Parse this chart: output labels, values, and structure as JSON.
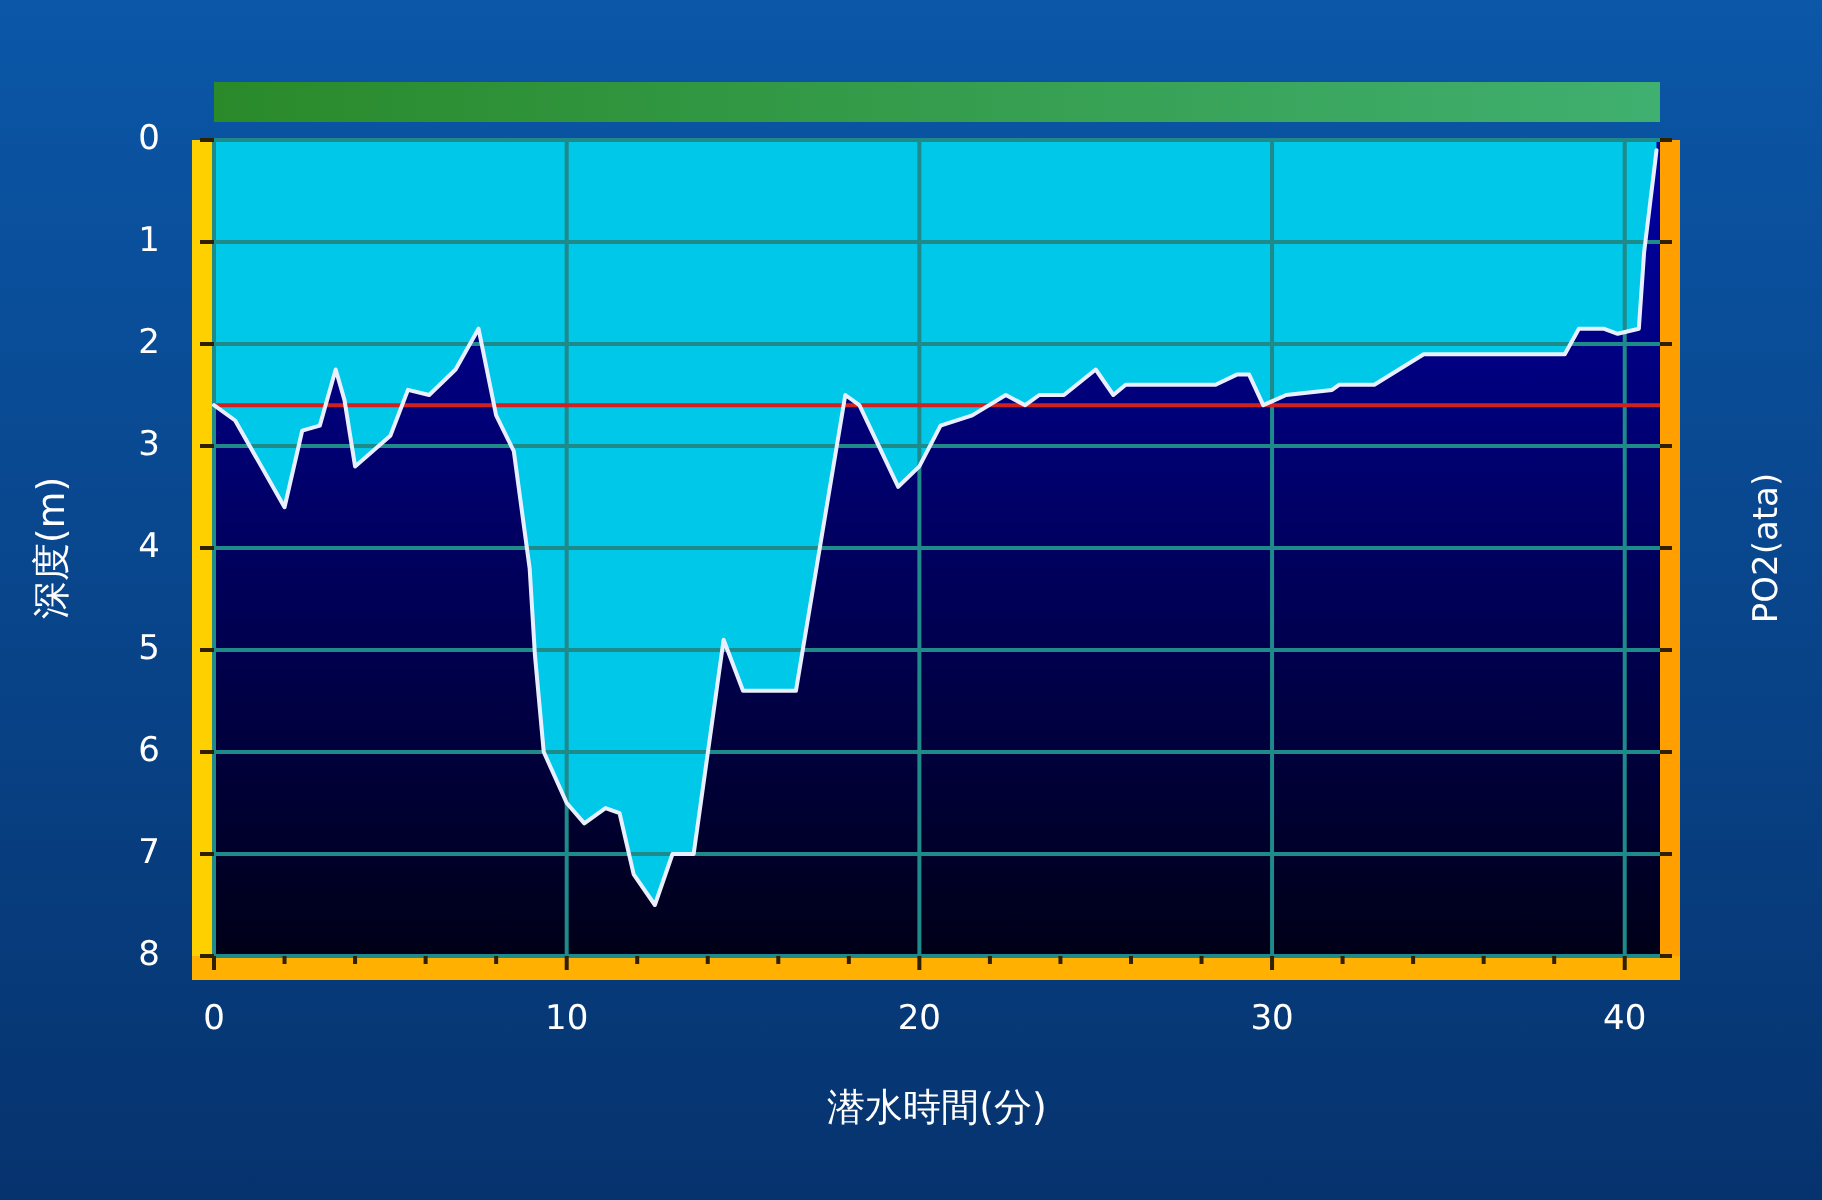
{
  "chart_data": {
    "type": "area",
    "xlabel": "潜水時間(分)",
    "ylabel": "深度(m)",
    "y2label": "PO2(ata)",
    "xlim": [
      0,
      41
    ],
    "ylim": [
      8,
      0
    ],
    "xticks": [
      0,
      {
        "value": 2,
        "label": null
      },
      {
        "value": 4,
        "label": null
      },
      {
        "value": 6,
        "label": null
      },
      {
        "value": 8,
        "label": null
      },
      10,
      {
        "value": 12,
        "label": null
      },
      {
        "value": 14,
        "label": null
      },
      {
        "value": 16,
        "label": null
      },
      {
        "value": 18,
        "label": null
      },
      20,
      {
        "value": 22,
        "label": null
      },
      {
        "value": 24,
        "label": null
      },
      {
        "value": 26,
        "label": null
      },
      {
        "value": 28,
        "label": null
      },
      30,
      {
        "value": 32,
        "label": null
      },
      {
        "value": 34,
        "label": null
      },
      {
        "value": 36,
        "label": null
      },
      {
        "value": 38,
        "label": null
      },
      40
    ],
    "yticks": [
      0,
      1,
      2,
      3,
      4,
      5,
      6,
      7,
      8
    ],
    "grid": true,
    "line_style": "solid",
    "marker": "none",
    "ref_lines": [
      {
        "axis": "y",
        "value": 2.6,
        "color": "#d02020",
        "line_style": "solid"
      }
    ],
    "series": [
      {
        "color": "#00c8e8",
        "x": [
          0,
          0.6,
          2.0,
          2.5,
          3.0,
          3.45,
          3.7,
          4.0,
          5.0,
          5.5,
          6.1,
          6.85,
          7.5,
          8.0,
          8.5,
          8.95,
          9.1,
          9.35,
          10.0,
          10.5,
          11.1,
          11.5,
          11.9,
          12.5,
          13.0,
          13.6,
          14.45,
          15.0,
          16.5,
          17.9,
          18.3,
          19.4,
          20.0,
          20.6,
          21.5,
          22.45,
          23.0,
          23.4,
          24.1,
          25.0,
          25.5,
          25.85,
          27.4,
          28.4,
          29.0,
          29.35,
          29.75,
          30.4,
          31.7,
          31.9,
          32.9,
          34.3,
          38.3,
          38.7,
          39.4,
          39.8,
          40.4,
          40.55,
          40.85,
          40.9
        ],
        "values": [
          2.6,
          2.75,
          3.6,
          2.85,
          2.8,
          2.25,
          2.55,
          3.2,
          2.9,
          2.45,
          2.5,
          2.25,
          1.85,
          2.7,
          3.05,
          4.2,
          5.05,
          6.0,
          6.5,
          6.7,
          6.55,
          6.6,
          7.2,
          7.5,
          7.0,
          7.0,
          4.9,
          5.4,
          5.4,
          2.5,
          2.6,
          3.4,
          3.2,
          2.8,
          2.7,
          2.5,
          2.6,
          2.5,
          2.5,
          2.25,
          2.5,
          2.4,
          2.4,
          2.4,
          2.3,
          2.3,
          2.6,
          2.5,
          2.45,
          2.4,
          2.4,
          2.1,
          2.1,
          1.85,
          1.85,
          1.9,
          1.85,
          1.1,
          0.25,
          0.1
        ]
      }
    ]
  }
}
